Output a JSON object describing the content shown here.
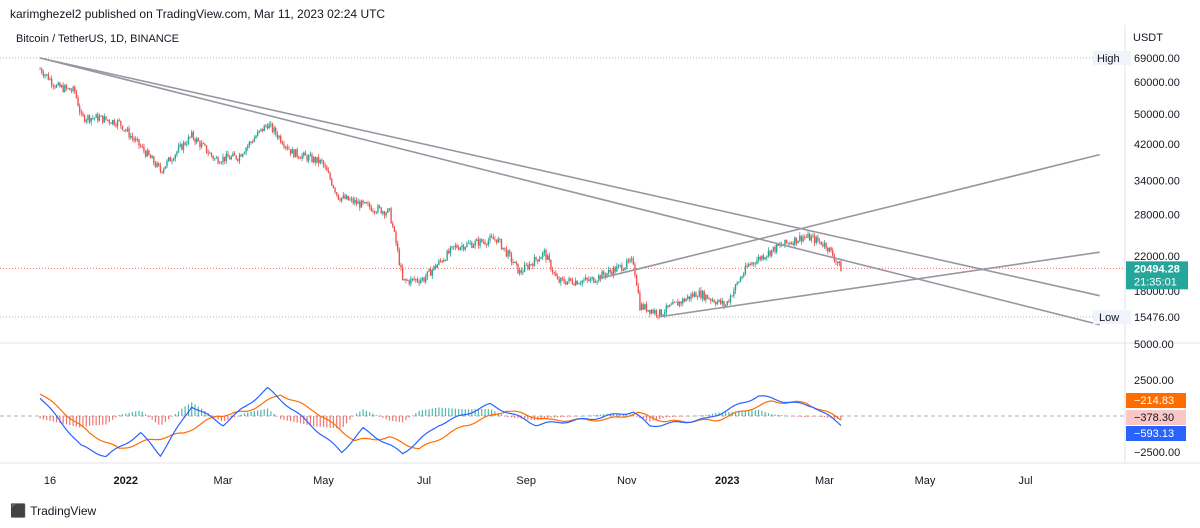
{
  "header": {
    "publish_line": "karimghezel2 published on TradingView.com, Mar 11, 2023 02:24 UTC",
    "symbol_line": "Bitcoin / TetherUS, 1D, BINANCE",
    "currency": "USDT"
  },
  "footer": {
    "brand": "TradingView",
    "logo_icon": "tradingview-logo-icon"
  },
  "colors": {
    "up": "#26a69a",
    "down": "#ef5350",
    "trendline": "#9598a1",
    "macd": "#2962ff",
    "signal": "#ff6d00",
    "hist_up": "#26a69a",
    "hist_down": "#ef5350",
    "price_marker": "#26a69a",
    "high_low_line": "#b2b5be"
  },
  "chart_data": [
    {
      "type": "candlestick",
      "title": "Bitcoin / TetherUS, 1D, BINANCE",
      "x_tick_labels": [
        "16",
        "2022",
        "Mar",
        "May",
        "Jul",
        "Sep",
        "Nov",
        "2023",
        "Mar",
        "May",
        "Jul"
      ],
      "x_tick_dates": [
        "2021-11-16",
        "2022-01-01",
        "2022-03-01",
        "2022-05-01",
        "2022-07-01",
        "2022-09-01",
        "2022-11-01",
        "2023-01-01",
        "2023-03-01",
        "2023-05-01",
        "2023-07-01"
      ],
      "y_scale": "log",
      "y_tick_labels": [
        "69000.00",
        "60000.00",
        "50000.00",
        "42000.00",
        "34000.00",
        "28000.00",
        "22000.00",
        "18000.00",
        "15476.00"
      ],
      "y_ticks": [
        60000,
        50000,
        42000,
        34000,
        28000,
        22000
      ],
      "high": {
        "label": "High",
        "value": "69000.00"
      },
      "low": {
        "label": "Low",
        "value": "15476.00"
      },
      "last_price": {
        "value": "20494.28",
        "countdown": "21:35:01"
      },
      "approx_closes": [
        [
          "2021-11-10",
          64800
        ],
        [
          "2021-11-20",
          58500
        ],
        [
          "2021-12-01",
          57000
        ],
        [
          "2021-12-05",
          49000
        ],
        [
          "2021-12-15",
          48900
        ],
        [
          "2021-12-28",
          47500
        ],
        [
          "2022-01-05",
          43500
        ],
        [
          "2022-01-22",
          36000
        ],
        [
          "2022-02-10",
          44000
        ],
        [
          "2022-02-24",
          38500
        ],
        [
          "2022-03-10",
          39000
        ],
        [
          "2022-03-28",
          47100
        ],
        [
          "2022-04-12",
          40000
        ],
        [
          "2022-04-30",
          37700
        ],
        [
          "2022-05-10",
          31000
        ],
        [
          "2022-05-25",
          29500
        ],
        [
          "2022-06-10",
          28300
        ],
        [
          "2022-06-18",
          19000
        ],
        [
          "2022-07-01",
          19300
        ],
        [
          "2022-07-20",
          23200
        ],
        [
          "2022-08-14",
          24300
        ],
        [
          "2022-08-28",
          20000
        ],
        [
          "2022-09-12",
          22400
        ],
        [
          "2022-09-20",
          19000
        ],
        [
          "2022-10-10",
          19100
        ],
        [
          "2022-11-05",
          21300
        ],
        [
          "2022-11-09",
          16500
        ],
        [
          "2022-11-21",
          15800
        ],
        [
          "2022-12-14",
          17800
        ],
        [
          "2022-12-31",
          16550
        ],
        [
          "2023-01-14",
          20900
        ],
        [
          "2023-01-31",
          23100
        ],
        [
          "2023-02-16",
          24600
        ],
        [
          "2023-02-21",
          24400
        ],
        [
          "2023-03-02",
          23450
        ],
        [
          "2023-03-11",
          20494
        ]
      ],
      "trendlines": [
        {
          "from": [
            "2021-11-10",
            69000
          ],
          "to": [
            "2023-08-15",
            14800
          ]
        },
        {
          "from": [
            "2021-11-10",
            69000
          ],
          "to": [
            "2023-08-15",
            17500
          ]
        },
        {
          "from": [
            "2022-10-15",
            19300
          ],
          "to": [
            "2023-08-15",
            39500
          ]
        },
        {
          "from": [
            "2022-11-21",
            15500
          ],
          "to": [
            "2023-08-15",
            22500
          ]
        }
      ]
    },
    {
      "type": "line",
      "title": "",
      "indicator": "MACD",
      "y_tick_labels": [
        "5000.00",
        "2500.00",
        "−2500.00"
      ],
      "y_ticks": [
        5000,
        2500,
        -2500
      ],
      "readouts": {
        "signal": "−214.83",
        "histogram": "−378.30",
        "macd": "−593.13"
      },
      "series": [
        {
          "role": "macd",
          "approx_values": [
            [
              "2021-11-10",
              1300
            ],
            [
              "2021-12-05",
              -2100
            ],
            [
              "2021-12-20",
              -2800
            ],
            [
              "2022-01-10",
              -1200
            ],
            [
              "2022-01-22",
              -2700
            ],
            [
              "2022-02-10",
              700
            ],
            [
              "2022-03-01",
              -600
            ],
            [
              "2022-03-28",
              1900
            ],
            [
              "2022-04-20",
              -300
            ],
            [
              "2022-05-12",
              -2500
            ],
            [
              "2022-05-25",
              -900
            ],
            [
              "2022-06-18",
              -2600
            ],
            [
              "2022-07-10",
              -600
            ],
            [
              "2022-08-10",
              800
            ],
            [
              "2022-09-07",
              -600
            ],
            [
              "2022-10-10",
              -200
            ],
            [
              "2022-11-05",
              300
            ],
            [
              "2022-11-15",
              -700
            ],
            [
              "2022-12-20",
              -200
            ],
            [
              "2023-01-20",
              1400
            ],
            [
              "2023-02-10",
              900
            ],
            [
              "2023-02-22",
              700
            ],
            [
              "2023-03-11",
              -593
            ]
          ]
        },
        {
          "role": "signal",
          "approx_values": [
            [
              "2021-11-10",
              1600
            ],
            [
              "2021-12-10",
              -1200
            ],
            [
              "2021-12-28",
              -2300
            ],
            [
              "2022-01-15",
              -1700
            ],
            [
              "2022-02-05",
              -1200
            ],
            [
              "2022-02-25",
              0
            ],
            [
              "2022-03-15",
              300
            ],
            [
              "2022-04-05",
              1500
            ],
            [
              "2022-04-25",
              400
            ],
            [
              "2022-05-20",
              -1700
            ],
            [
              "2022-06-10",
              -1500
            ],
            [
              "2022-06-28",
              -2300
            ],
            [
              "2022-07-25",
              -700
            ],
            [
              "2022-08-20",
              400
            ],
            [
              "2022-09-15",
              -300
            ],
            [
              "2022-10-20",
              -250
            ],
            [
              "2022-11-08",
              200
            ],
            [
              "2022-11-25",
              -400
            ],
            [
              "2022-12-25",
              -300
            ],
            [
              "2023-01-28",
              1000
            ],
            [
              "2023-02-18",
              900
            ],
            [
              "2023-03-11",
              -215
            ]
          ]
        }
      ]
    }
  ]
}
